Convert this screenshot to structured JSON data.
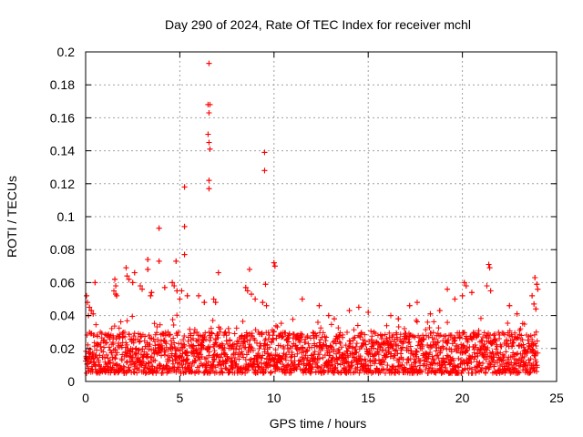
{
  "chart_data": {
    "type": "scatter",
    "title": "Day 290 of 2024, Rate Of TEC Index for receiver mchl",
    "xlabel": "GPS time / hours",
    "ylabel": "ROTI / TECUs",
    "xlim": [
      0,
      25
    ],
    "ylim": [
      0,
      0.2
    ],
    "xticks": [
      "0",
      "5",
      "10",
      "15",
      "20",
      "25"
    ],
    "yticks": [
      "0",
      "0.02",
      "0.04",
      "0.06",
      "0.08",
      "0.1",
      "0.12",
      "0.14",
      "0.16",
      "0.18",
      "0.2"
    ],
    "grid": true,
    "marker": "+",
    "series": [
      {
        "name": "ROTI",
        "color": "#ff0000",
        "points": [
          [
            6.55,
            0.193
          ],
          [
            6.5,
            0.168
          ],
          [
            6.6,
            0.168
          ],
          [
            6.55,
            0.163
          ],
          [
            6.5,
            0.15
          ],
          [
            6.55,
            0.145
          ],
          [
            6.6,
            0.141
          ],
          [
            9.5,
            0.139
          ],
          [
            9.5,
            0.128
          ],
          [
            6.55,
            0.122
          ],
          [
            6.55,
            0.117
          ],
          [
            5.25,
            0.118
          ],
          [
            5.25,
            0.094
          ],
          [
            3.9,
            0.093
          ],
          [
            5.25,
            0.077
          ],
          [
            3.3,
            0.074
          ],
          [
            3.9,
            0.073
          ],
          [
            4.8,
            0.073
          ],
          [
            10.0,
            0.072
          ],
          [
            10.05,
            0.07
          ],
          [
            21.4,
            0.071
          ],
          [
            21.45,
            0.069
          ],
          [
            3.3,
            0.068
          ],
          [
            8.7,
            0.068
          ],
          [
            7.05,
            0.066
          ],
          [
            2.15,
            0.069
          ],
          [
            2.6,
            0.066
          ],
          [
            23.85,
            0.063
          ],
          [
            23.95,
            0.059
          ],
          [
            24.0,
            0.056
          ],
          [
            20.1,
            0.06
          ],
          [
            20.2,
            0.058
          ],
          [
            9.55,
            0.059
          ],
          [
            0.5,
            0.06
          ],
          [
            1.55,
            0.062
          ],
          [
            1.6,
            0.058
          ],
          [
            1.5,
            0.055
          ],
          [
            1.6,
            0.053
          ],
          [
            1.65,
            0.052
          ],
          [
            2.2,
            0.064
          ],
          [
            2.3,
            0.062
          ],
          [
            2.5,
            0.06
          ],
          [
            2.9,
            0.058
          ],
          [
            3.0,
            0.056
          ],
          [
            3.5,
            0.054
          ],
          [
            3.45,
            0.052
          ],
          [
            4.2,
            0.057
          ],
          [
            4.6,
            0.06
          ],
          [
            4.7,
            0.058
          ],
          [
            4.85,
            0.055
          ],
          [
            5.0,
            0.05
          ],
          [
            5.1,
            0.055
          ],
          [
            5.4,
            0.052
          ],
          [
            6.0,
            0.052
          ],
          [
            6.3,
            0.048
          ],
          [
            6.8,
            0.05
          ],
          [
            6.9,
            0.048
          ],
          [
            8.5,
            0.057
          ],
          [
            8.6,
            0.055
          ],
          [
            8.8,
            0.053
          ],
          [
            9.0,
            0.05
          ],
          [
            9.4,
            0.048
          ],
          [
            9.6,
            0.046
          ],
          [
            11.5,
            0.05
          ],
          [
            12.4,
            0.046
          ],
          [
            14.0,
            0.043
          ],
          [
            14.5,
            0.045
          ],
          [
            15.0,
            0.042
          ],
          [
            17.2,
            0.046
          ],
          [
            17.6,
            0.048
          ],
          [
            19.2,
            0.056
          ],
          [
            19.6,
            0.05
          ],
          [
            20.0,
            0.052
          ],
          [
            20.5,
            0.054
          ],
          [
            21.3,
            0.058
          ],
          [
            21.5,
            0.055
          ],
          [
            22.5,
            0.046
          ],
          [
            23.7,
            0.052
          ],
          [
            23.8,
            0.047
          ],
          [
            23.9,
            0.044
          ],
          [
            0.05,
            0.052
          ],
          [
            0.1,
            0.048
          ],
          [
            0.2,
            0.045
          ],
          [
            0.3,
            0.043
          ],
          [
            0.4,
            0.041
          ],
          [
            0.15,
            0.04
          ],
          [
            12.9,
            0.04
          ],
          [
            13.2,
            0.038
          ],
          [
            16.2,
            0.04
          ],
          [
            16.6,
            0.038
          ],
          [
            18.3,
            0.041
          ],
          [
            18.8,
            0.043
          ],
          [
            22.9,
            0.041
          ]
        ],
        "bulk": {
          "description": "dense cloud of points across the full day",
          "x_range": [
            0,
            24
          ],
          "typical_y_range": [
            0.005,
            0.03
          ],
          "point_count": 2200
        }
      }
    ]
  }
}
